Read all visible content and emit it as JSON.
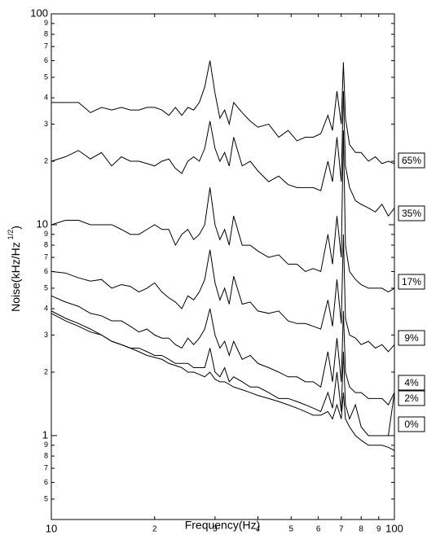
{
  "chart_data": {
    "type": "line",
    "xlabel": "Frequency(Hz)",
    "ylabel": [
      "Noise(kHz/Hz",
      "1/2",
      ")"
    ],
    "log_x": true,
    "log_y": true,
    "xlim": [
      10,
      100
    ],
    "ylim": [
      0.4,
      100
    ],
    "xticks": [
      10,
      {
        "value": 20,
        "label": "2"
      },
      {
        "value": 30,
        "label": "3"
      },
      {
        "value": 40,
        "label": "4"
      },
      {
        "value": 50,
        "label": "5"
      },
      {
        "value": 60,
        "label": "6"
      },
      {
        "value": 70,
        "label": "7"
      },
      {
        "value": 80,
        "label": "8"
      },
      {
        "value": 90,
        "label": "9"
      },
      100
    ],
    "yticks": [
      {
        "value": 0.5,
        "label": "5"
      },
      {
        "value": 0.6,
        "label": "6"
      },
      {
        "value": 0.7,
        "label": "7"
      },
      {
        "value": 0.8,
        "label": "8"
      },
      {
        "value": 0.9,
        "label": "9"
      },
      1,
      2,
      3,
      4,
      5,
      6,
      7,
      8,
      9,
      10,
      {
        "value": 20,
        "label": "2"
      },
      {
        "value": 30,
        "label": "3"
      },
      {
        "value": 40,
        "label": "4"
      },
      {
        "value": 50,
        "label": "5"
      },
      {
        "value": 60,
        "label": "6"
      },
      {
        "value": 70,
        "label": "7"
      },
      {
        "value": 80,
        "label": "8"
      },
      {
        "value": 90,
        "label": "9"
      },
      100
    ],
    "x": [
      10,
      11,
      12,
      13,
      14,
      15,
      16,
      17,
      18,
      19,
      20,
      21,
      22,
      23,
      24,
      25,
      26,
      27,
      28,
      29,
      30,
      31,
      32,
      33,
      34,
      36,
      38,
      40,
      43,
      46,
      49,
      52,
      55,
      58,
      61,
      64,
      66,
      68,
      70,
      71,
      72,
      74,
      77,
      80,
      84,
      88,
      92,
      96,
      100
    ],
    "series": [
      {
        "name": "65%",
        "color": "#000000",
        "values": [
          38,
          38,
          38,
          34,
          36,
          35,
          36,
          35,
          35,
          36,
          36,
          35,
          33,
          36,
          33,
          36,
          35,
          38,
          45,
          60,
          42,
          32,
          35,
          30,
          38,
          34,
          31,
          29,
          30,
          26,
          28,
          25,
          26,
          26,
          27,
          33,
          28,
          43,
          30,
          59,
          32,
          24,
          22,
          22,
          20,
          21,
          19.5,
          20,
          19.5
        ]
      },
      {
        "name": "35%",
        "color": "#000000",
        "values": [
          20,
          21,
          22.5,
          20.5,
          22,
          19,
          21,
          20,
          20,
          19.5,
          19,
          20,
          20.5,
          18.5,
          17.5,
          20,
          21,
          20,
          23,
          31,
          23,
          20,
          22,
          19,
          26,
          19,
          20,
          18,
          16,
          17,
          15.5,
          15,
          15,
          15,
          14.5,
          20,
          16,
          26,
          16,
          43,
          19,
          15,
          13,
          12.5,
          12,
          11.5,
          12.5,
          11,
          12
        ]
      },
      {
        "name": "17%",
        "color": "#000000",
        "values": [
          10,
          10.5,
          10.5,
          10,
          10,
          10,
          9.5,
          9,
          9,
          9.5,
          10,
          9.5,
          9.5,
          8,
          9,
          9.5,
          8.5,
          9,
          10,
          15,
          10,
          8.5,
          9.5,
          8,
          11,
          8,
          8,
          7.5,
          7,
          7.2,
          6.5,
          6.5,
          6,
          6.2,
          6,
          9,
          6.5,
          11,
          7,
          28,
          8,
          6,
          5.5,
          5.2,
          5,
          5,
          5,
          4.8,
          5
        ]
      },
      {
        "name": "9%",
        "color": "#000000",
        "values": [
          6.0,
          5.9,
          5.6,
          5.4,
          5.5,
          5.0,
          5.2,
          5.1,
          4.8,
          5.0,
          5.3,
          4.8,
          4.5,
          4.3,
          4.0,
          4.6,
          4.4,
          4.8,
          5.5,
          7.6,
          5.3,
          4.4,
          5.0,
          4.2,
          5.7,
          4.2,
          4.3,
          3.9,
          3.8,
          3.9,
          3.5,
          3.4,
          3.4,
          3.3,
          3.2,
          4.4,
          3.3,
          5.5,
          3.4,
          9.0,
          3.6,
          3.0,
          2.9,
          2.7,
          2.8,
          2.6,
          2.7,
          2.5,
          2.7
        ]
      },
      {
        "name": "4%",
        "color": "#000000",
        "values": [
          4.6,
          4.3,
          4.1,
          3.8,
          3.7,
          3.5,
          3.5,
          3.3,
          3.1,
          3.2,
          3.0,
          2.9,
          2.9,
          2.7,
          2.6,
          2.9,
          2.7,
          2.9,
          3.2,
          4.0,
          3.0,
          2.6,
          2.8,
          2.4,
          2.8,
          2.3,
          2.4,
          2.2,
          2.1,
          2.0,
          1.9,
          1.9,
          1.8,
          1.8,
          1.7,
          2.5,
          1.8,
          2.9,
          1.8,
          3.9,
          2.0,
          1.7,
          1.6,
          1.6,
          1.5,
          1.5,
          1.5,
          1.4,
          1.6
        ]
      },
      {
        "name": "2%",
        "color": "#000000",
        "values": [
          3.9,
          3.6,
          3.4,
          3.2,
          3.0,
          2.8,
          2.7,
          2.6,
          2.6,
          2.5,
          2.4,
          2.4,
          2.3,
          2.2,
          2.2,
          2.2,
          2.1,
          2.1,
          2.1,
          2.6,
          2.0,
          1.9,
          2.1,
          1.8,
          1.9,
          1.8,
          1.7,
          1.7,
          1.6,
          1.5,
          1.5,
          1.45,
          1.4,
          1.35,
          1.3,
          1.6,
          1.35,
          2.0,
          1.3,
          2.5,
          1.4,
          1.2,
          1.4,
          1.1,
          1.0,
          1.0,
          1.0,
          1.0,
          1.6
        ]
      },
      {
        "name": "0%",
        "color": "#000000",
        "values": [
          3.8,
          3.5,
          3.3,
          3.1,
          3.0,
          2.8,
          2.7,
          2.6,
          2.5,
          2.4,
          2.35,
          2.3,
          2.2,
          2.15,
          2.1,
          2.0,
          2.0,
          1.95,
          1.9,
          2.0,
          1.85,
          1.8,
          1.8,
          1.75,
          1.7,
          1.65,
          1.6,
          1.55,
          1.5,
          1.45,
          1.4,
          1.35,
          1.3,
          1.25,
          1.25,
          1.3,
          1.2,
          1.4,
          1.2,
          1.6,
          1.2,
          1.1,
          1.0,
          0.95,
          0.9,
          0.9,
          0.9,
          0.88,
          0.85
        ]
      }
    ]
  }
}
